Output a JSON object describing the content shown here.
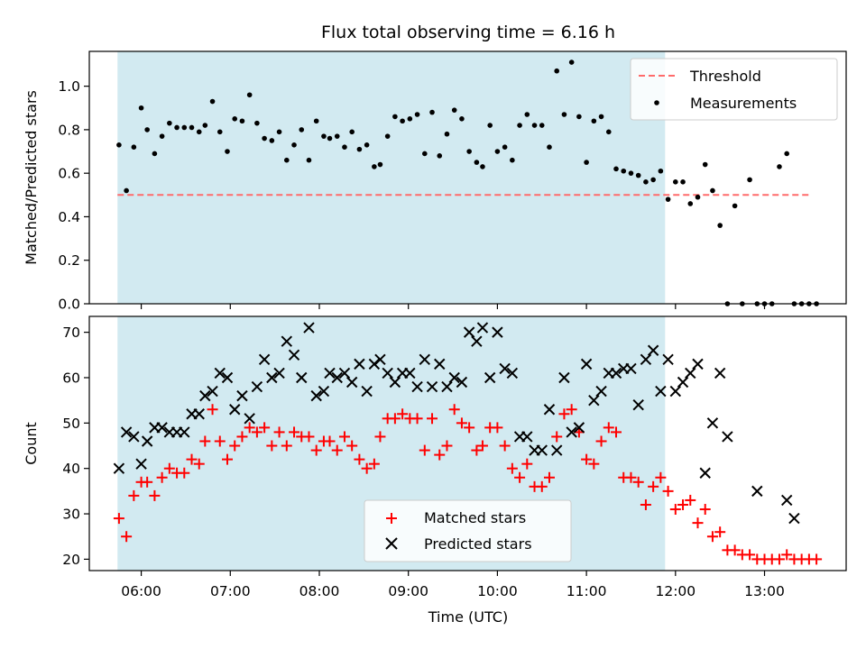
{
  "chart_data": [
    {
      "id": "top",
      "type": "scatter",
      "title": "Flux total observing time = 6.16 h",
      "xlabel": "",
      "ylabel": "Matched/Predicted stars",
      "xlim": [
        "05:25",
        "13:55"
      ],
      "ylim": [
        0,
        1.16
      ],
      "yticks": [
        0.0,
        0.2,
        0.4,
        0.6,
        0.8,
        1.0
      ],
      "ytick_labels": [
        "0.0",
        "0.2",
        "0.4",
        "0.6",
        "0.8",
        "1.0"
      ],
      "legend_position": "top-right",
      "shaded_span": {
        "start": "05:44",
        "end": "11:53",
        "color": "#add8e6"
      },
      "threshold": {
        "name": "Threshold",
        "y": 0.5,
        "x_start": "05:44",
        "x_end": "13:32",
        "color": "#ff6b6b",
        "style": "dashed"
      },
      "series": [
        {
          "name": "Measurements",
          "color": "#000000",
          "marker": "dot",
          "x": [
            "05:45",
            "05:50",
            "05:55",
            "06:00",
            "06:04",
            "06:09",
            "06:14",
            "06:19",
            "06:24",
            "06:29",
            "06:34",
            "06:39",
            "06:43",
            "06:48",
            "06:53",
            "06:58",
            "07:03",
            "07:08",
            "07:13",
            "07:18",
            "07:23",
            "07:28",
            "07:33",
            "07:38",
            "07:43",
            "07:48",
            "07:53",
            "07:58",
            "08:03",
            "08:07",
            "08:12",
            "08:17",
            "08:22",
            "08:27",
            "08:32",
            "08:37",
            "08:41",
            "08:46",
            "08:51",
            "08:56",
            "09:01",
            "09:06",
            "09:11",
            "09:16",
            "09:21",
            "09:26",
            "09:31",
            "09:36",
            "09:41",
            "09:46",
            "09:50",
            "09:55",
            "10:00",
            "10:05",
            "10:10",
            "10:15",
            "10:20",
            "10:25",
            "10:30",
            "10:35",
            "10:40",
            "10:45",
            "10:50",
            "10:55",
            "11:00",
            "11:05",
            "11:10",
            "11:15",
            "11:20",
            "11:25",
            "11:30",
            "11:35",
            "11:40",
            "11:45",
            "11:50",
            "11:55",
            "12:00",
            "12:05",
            "12:10",
            "12:15",
            "12:20",
            "12:25",
            "12:30",
            "12:35",
            "12:40",
            "12:45",
            "12:50",
            "12:55",
            "13:00",
            "13:05",
            "13:10",
            "13:15",
            "13:20",
            "13:25",
            "13:30",
            "13:35"
          ],
          "y": [
            0.73,
            0.52,
            0.72,
            0.9,
            0.8,
            0.69,
            0.77,
            0.83,
            0.81,
            0.81,
            0.81,
            0.79,
            0.82,
            0.93,
            0.79,
            0.7,
            0.85,
            0.84,
            0.96,
            0.83,
            0.76,
            0.75,
            0.79,
            0.66,
            0.73,
            0.8,
            0.66,
            0.84,
            0.77,
            0.76,
            0.77,
            0.72,
            0.79,
            0.71,
            0.73,
            0.63,
            0.64,
            0.77,
            0.86,
            0.84,
            0.85,
            0.87,
            0.69,
            0.88,
            0.68,
            0.78,
            0.89,
            0.85,
            0.7,
            0.65,
            0.63,
            0.82,
            0.7,
            0.72,
            0.66,
            0.82,
            0.87,
            0.82,
            0.82,
            0.72,
            1.07,
            0.87,
            1.11,
            0.86,
            0.65,
            0.84,
            0.86,
            0.79,
            0.62,
            0.61,
            0.6,
            0.59,
            0.56,
            0.57,
            0.61,
            0.48,
            0.56,
            0.56,
            0.46,
            0.49,
            0.64,
            0.52,
            0.36,
            0.0,
            0.45,
            0.0,
            0.57,
            0.0,
            0.0,
            0.0,
            0.63,
            0.69,
            0.0,
            0.0,
            0.0,
            0.0
          ]
        }
      ]
    },
    {
      "id": "bottom",
      "type": "scatter",
      "title": "",
      "xlabel": "Time (UTC)",
      "ylabel": "Count",
      "xlim": [
        "05:25",
        "13:55"
      ],
      "ylim": [
        17.5,
        73.5
      ],
      "yticks": [
        20,
        30,
        40,
        50,
        60,
        70
      ],
      "ytick_labels": [
        "20",
        "30",
        "40",
        "50",
        "60",
        "70"
      ],
      "xtick_labels": [
        "06:00",
        "07:00",
        "08:00",
        "09:00",
        "10:00",
        "11:00",
        "12:00",
        "13:00"
      ],
      "legend_position": "lower-center",
      "shaded_span": {
        "start": "05:44",
        "end": "11:53",
        "color": "#add8e6"
      },
      "series": [
        {
          "name": "Matched stars",
          "color": "#ff0000",
          "marker": "plus",
          "x": [
            "05:45",
            "05:50",
            "05:55",
            "06:00",
            "06:04",
            "06:09",
            "06:14",
            "06:19",
            "06:24",
            "06:29",
            "06:34",
            "06:39",
            "06:43",
            "06:48",
            "06:53",
            "06:58",
            "07:03",
            "07:08",
            "07:13",
            "07:18",
            "07:23",
            "07:28",
            "07:33",
            "07:38",
            "07:43",
            "07:48",
            "07:53",
            "07:58",
            "08:03",
            "08:07",
            "08:12",
            "08:17",
            "08:22",
            "08:27",
            "08:32",
            "08:37",
            "08:41",
            "08:46",
            "08:51",
            "08:56",
            "09:01",
            "09:06",
            "09:11",
            "09:16",
            "09:21",
            "09:26",
            "09:31",
            "09:36",
            "09:41",
            "09:46",
            "09:50",
            "09:55",
            "10:00",
            "10:05",
            "10:10",
            "10:15",
            "10:20",
            "10:25",
            "10:30",
            "10:35",
            "10:40",
            "10:45",
            "10:50",
            "10:55",
            "11:00",
            "11:05",
            "11:10",
            "11:15",
            "11:20",
            "11:25",
            "11:30",
            "11:35",
            "11:40",
            "11:45",
            "11:50",
            "11:55",
            "12:00",
            "12:05",
            "12:10",
            "12:15",
            "12:20",
            "12:25",
            "12:30",
            "12:35",
            "12:40",
            "12:45",
            "12:50",
            "12:55",
            "13:00",
            "13:05",
            "13:10",
            "13:15",
            "13:20",
            "13:25",
            "13:30",
            "13:35"
          ],
          "y": [
            29,
            25,
            34,
            37,
            37,
            34,
            38,
            40,
            39,
            39,
            42,
            41,
            46,
            53,
            46,
            42,
            45,
            47,
            49,
            48,
            49,
            45,
            48,
            45,
            48,
            47,
            47,
            44,
            46,
            46,
            44,
            47,
            45,
            42,
            40,
            41,
            47,
            51,
            51,
            52,
            51,
            51,
            44,
            51,
            43,
            45,
            53,
            50,
            49,
            44,
            45,
            49,
            49,
            45,
            40,
            38,
            41,
            36,
            36,
            38,
            47,
            52,
            53,
            48,
            42,
            41,
            46,
            49,
            48,
            38,
            38,
            37,
            32,
            36,
            38,
            35,
            31,
            32,
            33,
            28,
            31,
            25,
            26,
            22,
            22,
            21,
            21,
            20,
            20,
            20,
            20,
            21,
            20,
            20,
            20,
            20
          ]
        },
        {
          "name": "Predicted stars",
          "color": "#000000",
          "marker": "x",
          "x": [
            "05:45",
            "05:50",
            "05:55",
            "06:00",
            "06:04",
            "06:09",
            "06:14",
            "06:19",
            "06:24",
            "06:29",
            "06:34",
            "06:39",
            "06:43",
            "06:48",
            "06:53",
            "06:58",
            "07:03",
            "07:08",
            "07:13",
            "07:18",
            "07:23",
            "07:28",
            "07:33",
            "07:38",
            "07:43",
            "07:48",
            "07:53",
            "07:58",
            "08:03",
            "08:07",
            "08:12",
            "08:17",
            "08:22",
            "08:27",
            "08:32",
            "08:37",
            "08:41",
            "08:46",
            "08:51",
            "08:56",
            "09:01",
            "09:06",
            "09:11",
            "09:16",
            "09:21",
            "09:26",
            "09:31",
            "09:36",
            "09:41",
            "09:46",
            "09:50",
            "09:55",
            "10:00",
            "10:05",
            "10:10",
            "10:15",
            "10:20",
            "10:25",
            "10:30",
            "10:35",
            "10:40",
            "10:45",
            "10:50",
            "10:55",
            "11:00",
            "11:05",
            "11:10",
            "11:15",
            "11:20",
            "11:25",
            "11:30",
            "11:35",
            "11:40",
            "11:45",
            "11:50",
            "11:55",
            "12:00",
            "12:05",
            "12:10",
            "12:15",
            "12:20",
            "12:25",
            "12:30",
            "12:35",
            "12:55",
            "13:15",
            "13:20"
          ],
          "y": [
            40,
            48,
            47,
            41,
            46,
            49,
            49,
            48,
            48,
            48,
            52,
            52,
            56,
            57,
            61,
            60,
            53,
            56,
            51,
            58,
            64,
            60,
            61,
            68,
            65,
            60,
            71,
            56,
            57,
            61,
            60,
            61,
            59,
            63,
            57,
            63,
            64,
            61,
            59,
            61,
            61,
            58,
            64,
            58,
            63,
            58,
            60,
            59,
            70,
            68,
            71,
            60,
            70,
            62,
            61,
            47,
            47,
            44,
            44,
            53,
            44,
            60,
            48,
            49,
            63,
            55,
            57,
            61,
            61,
            62,
            62,
            54,
            64,
            66,
            57,
            64,
            57,
            59,
            61,
            63,
            39,
            50,
            61,
            47,
            35,
            33,
            29
          ]
        }
      ]
    }
  ]
}
